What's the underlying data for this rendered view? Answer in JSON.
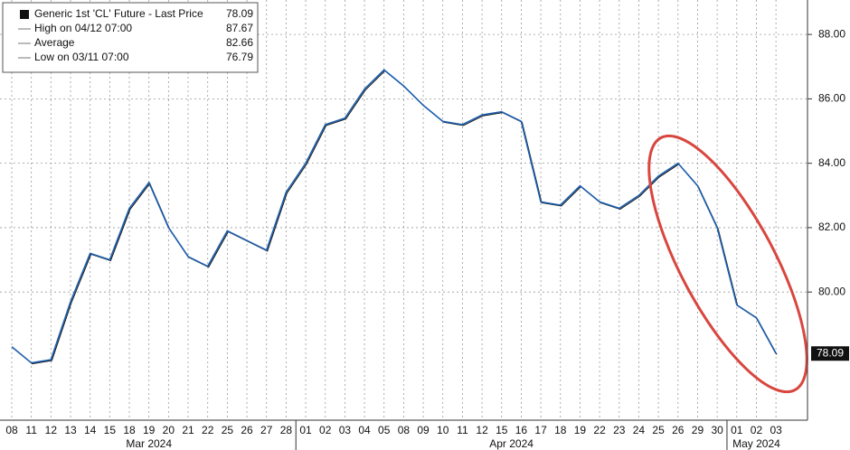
{
  "chart_data": {
    "type": "line",
    "categories": [
      "08",
      "11",
      "12",
      "13",
      "14",
      "15",
      "18",
      "19",
      "20",
      "21",
      "22",
      "25",
      "26",
      "27",
      "28",
      "01",
      "02",
      "03",
      "04",
      "05",
      "08",
      "09",
      "10",
      "11",
      "12",
      "15",
      "16",
      "17",
      "18",
      "19",
      "22",
      "23",
      "24",
      "25",
      "26",
      "29",
      "30",
      "01",
      "02",
      "03"
    ],
    "months": [
      {
        "label": "Mar 2024",
        "from": 0,
        "to": 14
      },
      {
        "label": "Apr 2024",
        "from": 15,
        "to": 36
      },
      {
        "label": "May 2024",
        "from": 37,
        "to": 39
      }
    ],
    "series": [
      {
        "name": "Generic 1st 'CL' Future - Last Price",
        "color": "#1d5fae",
        "values": [
          78.3,
          77.8,
          77.9,
          79.7,
          81.2,
          81.0,
          82.6,
          83.4,
          82.0,
          81.1,
          80.8,
          81.9,
          81.6,
          81.3,
          83.1,
          84.0,
          85.2,
          85.4,
          86.3,
          86.9,
          86.4,
          85.8,
          85.3,
          85.2,
          85.5,
          85.6,
          85.3,
          82.8,
          82.7,
          83.3,
          82.8,
          82.6,
          83.0,
          83.6,
          84.0,
          83.3,
          82.0,
          79.6,
          79.2,
          78.09
        ]
      }
    ],
    "legend": [
      {
        "label": "Generic 1st 'CL' Future - Last Price",
        "value": 78.09
      },
      {
        "label": "High on 04/12 07:00",
        "value": 87.67
      },
      {
        "label": "Average",
        "value": 82.66
      },
      {
        "label": "Low on 03/11 07:00",
        "value": 76.79
      }
    ],
    "last_price": 78.09,
    "ylim": [
      76.02,
      89.07
    ],
    "yticks": [
      {
        "value": 80,
        "label": "80.00"
      },
      {
        "value": 82,
        "label": "82.00"
      },
      {
        "value": 84,
        "label": "84.00"
      },
      {
        "value": 86,
        "label": "86.00"
      },
      {
        "value": 88,
        "label": "88.00"
      }
    ],
    "grid": true
  }
}
